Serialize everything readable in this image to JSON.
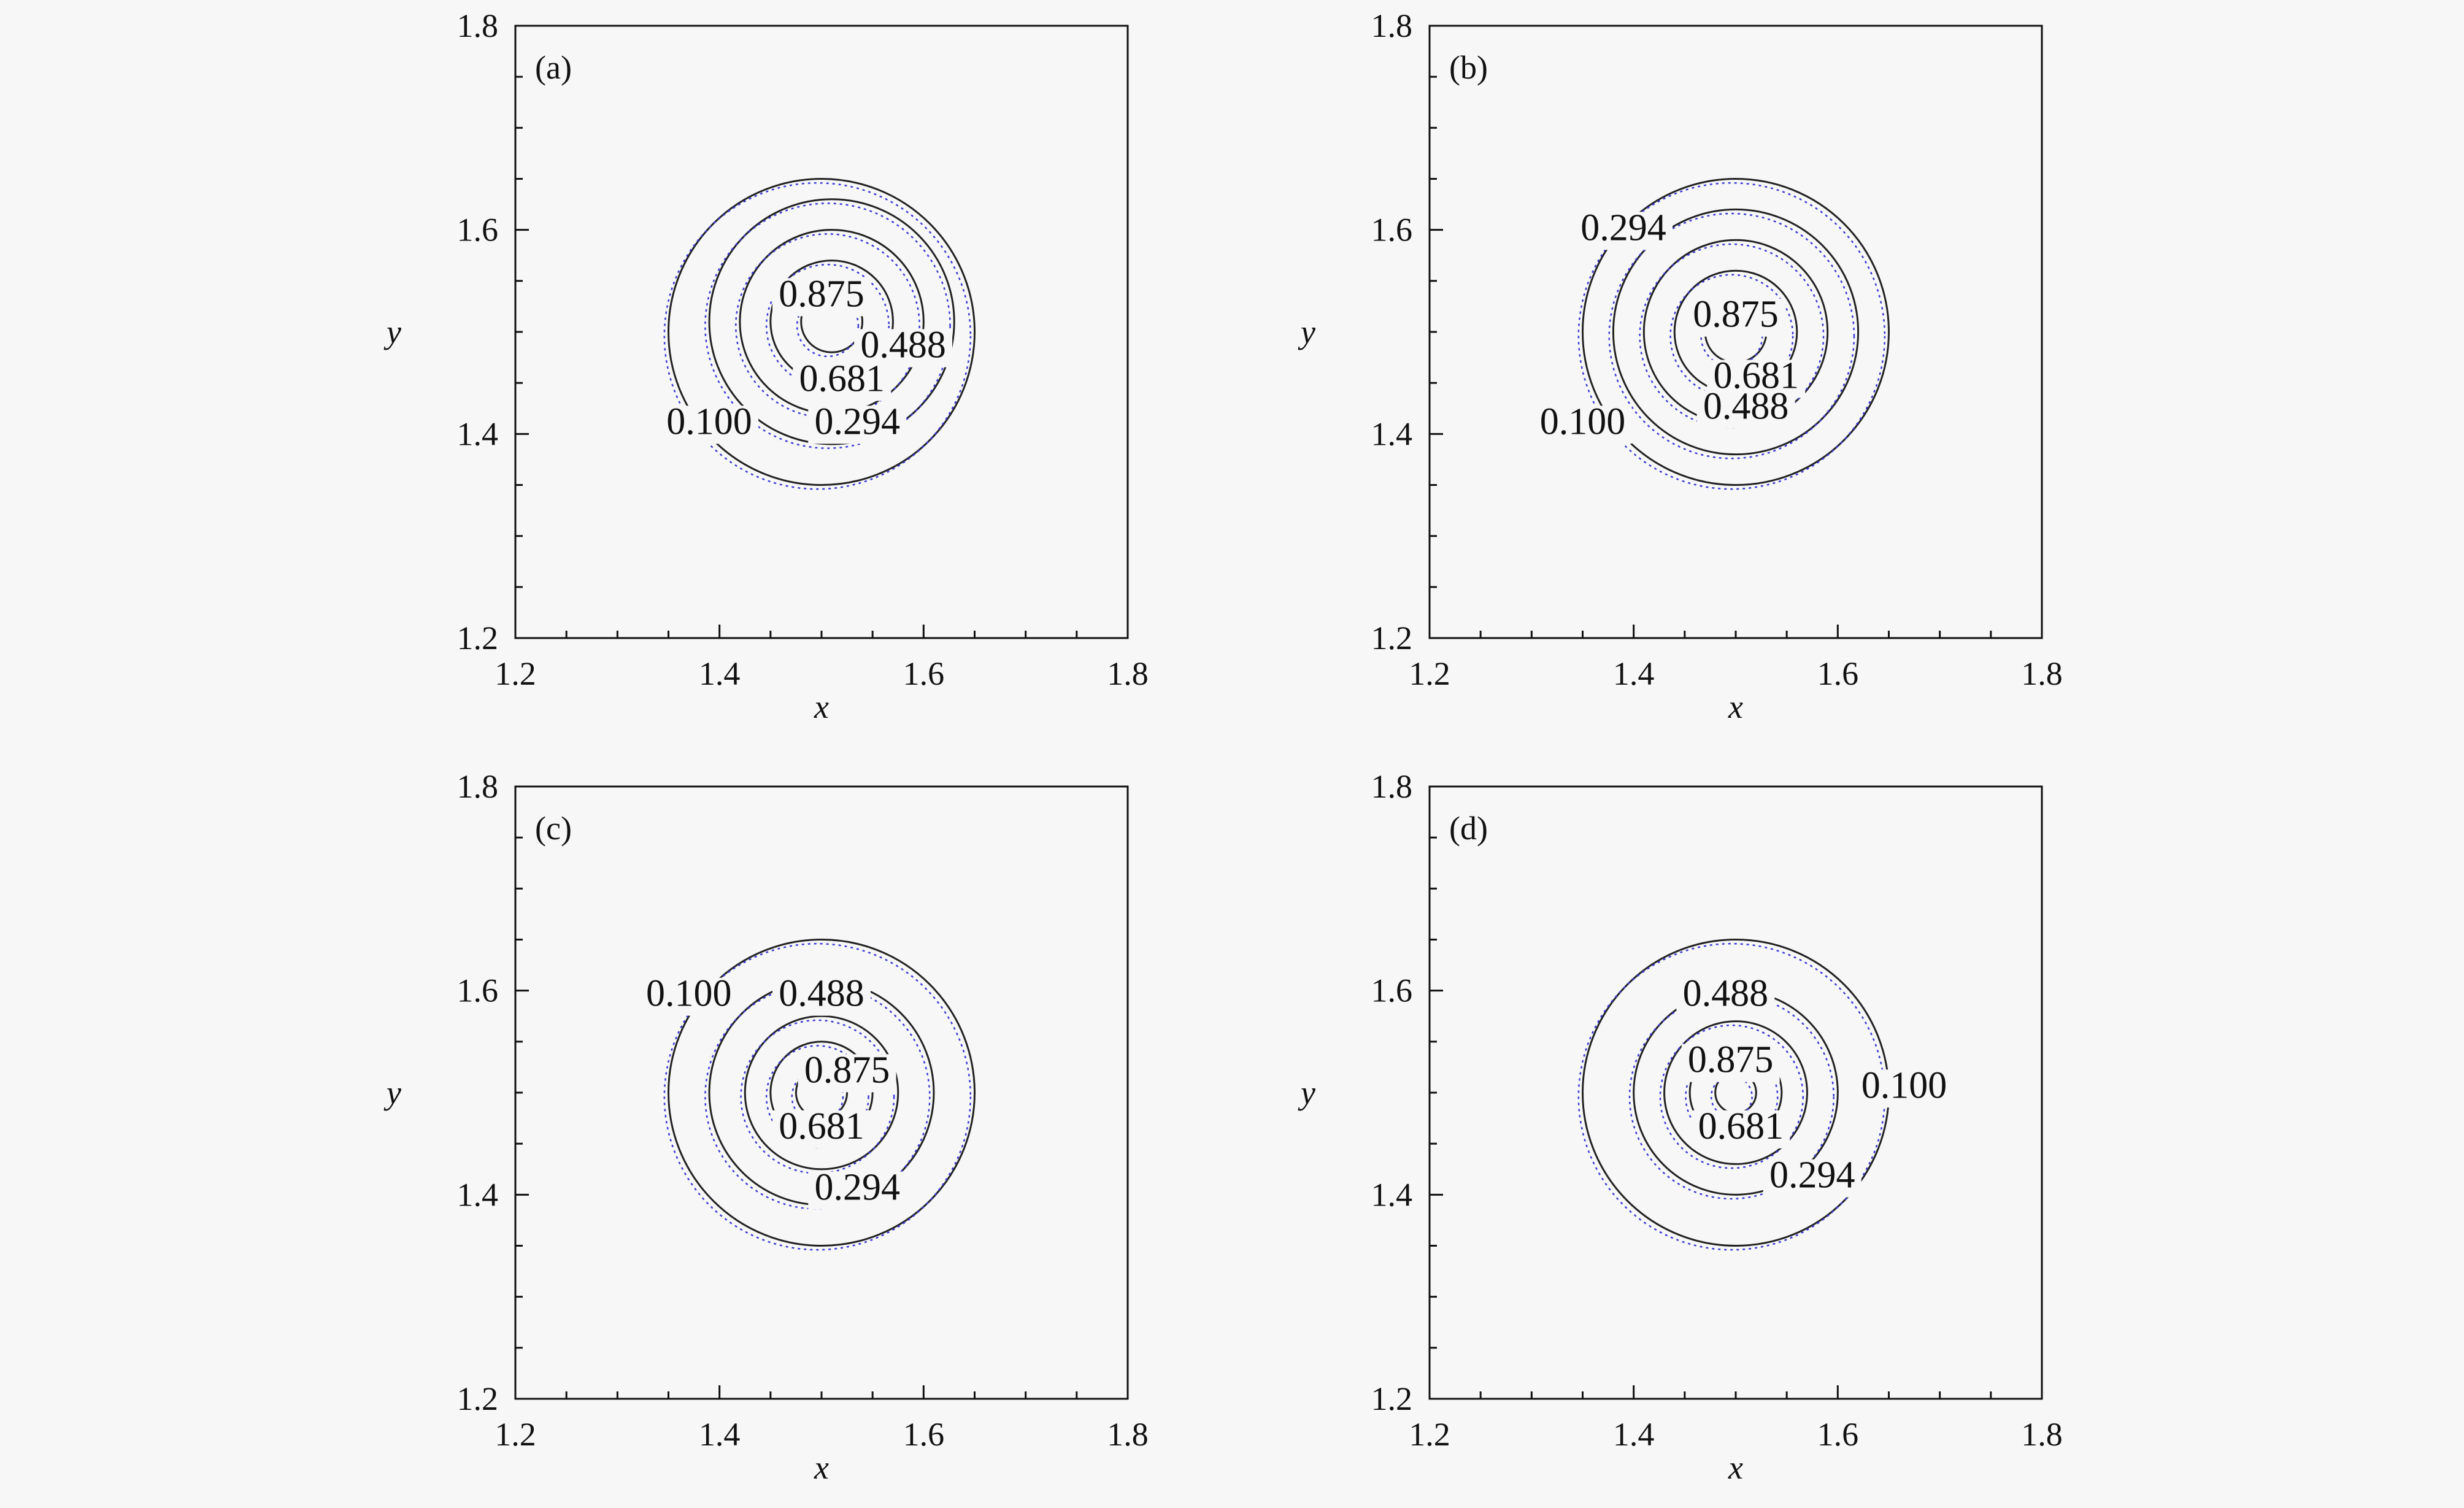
{
  "chart_data": [
    {
      "type": "contour",
      "panel_label": "(a)",
      "xlabel": "x",
      "ylabel": "y",
      "xlim": [
        1.2,
        1.8
      ],
      "ylim": [
        1.2,
        1.8
      ],
      "xticks": [
        "1.2",
        "1.4",
        "1.6",
        "1.8"
      ],
      "yticks": [
        "1.2",
        "1.4",
        "1.6",
        "1.8"
      ],
      "contours": [
        {
          "level": "0.100",
          "cx": 1.5,
          "cy": 1.5,
          "rx": 0.15,
          "ry": 0.15
        },
        {
          "level": "0.294",
          "cx": 1.51,
          "cy": 1.51,
          "rx": 0.12,
          "ry": 0.12
        },
        {
          "level": "0.488",
          "cx": 1.51,
          "cy": 1.51,
          "rx": 0.09,
          "ry": 0.09
        },
        {
          "level": "0.681",
          "cx": 1.51,
          "cy": 1.51,
          "rx": 0.06,
          "ry": 0.06
        },
        {
          "level": "0.875",
          "cx": 1.51,
          "cy": 1.51,
          "rx": 0.03,
          "ry": 0.03
        }
      ],
      "labels": [
        {
          "text": "0.875",
          "x": 1.5,
          "y": 1.525
        },
        {
          "text": "0.488",
          "x": 1.58,
          "y": 1.475
        },
        {
          "text": "0.681",
          "x": 1.52,
          "y": 1.442
        },
        {
          "text": "0.294",
          "x": 1.535,
          "y": 1.4
        },
        {
          "text": "0.100",
          "x": 1.39,
          "y": 1.4
        }
      ]
    },
    {
      "type": "contour",
      "panel_label": "(b)",
      "xlabel": "x",
      "ylabel": "y",
      "xlim": [
        1.2,
        1.8
      ],
      "ylim": [
        1.2,
        1.8
      ],
      "xticks": [
        "1.2",
        "1.4",
        "1.6",
        "1.8"
      ],
      "yticks": [
        "1.2",
        "1.4",
        "1.6",
        "1.8"
      ],
      "contours": [
        {
          "level": "0.100",
          "cx": 1.5,
          "cy": 1.5,
          "rx": 0.15,
          "ry": 0.15
        },
        {
          "level": "0.294",
          "cx": 1.5,
          "cy": 1.5,
          "rx": 0.12,
          "ry": 0.12
        },
        {
          "level": "0.488",
          "cx": 1.5,
          "cy": 1.5,
          "rx": 0.09,
          "ry": 0.09
        },
        {
          "level": "0.681",
          "cx": 1.5,
          "cy": 1.5,
          "rx": 0.06,
          "ry": 0.06
        },
        {
          "level": "0.875",
          "cx": 1.5,
          "cy": 1.5,
          "rx": 0.03,
          "ry": 0.03
        }
      ],
      "labels": [
        {
          "text": "0.294",
          "x": 1.39,
          "y": 1.59
        },
        {
          "text": "0.875",
          "x": 1.5,
          "y": 1.505
        },
        {
          "text": "0.681",
          "x": 1.52,
          "y": 1.445
        },
        {
          "text": "0.488",
          "x": 1.51,
          "y": 1.415
        },
        {
          "text": "0.100",
          "x": 1.35,
          "y": 1.4
        }
      ]
    },
    {
      "type": "contour",
      "panel_label": "(c)",
      "xlabel": "x",
      "ylabel": "y",
      "xlim": [
        1.2,
        1.8
      ],
      "ylim": [
        1.2,
        1.8
      ],
      "xticks": [
        "1.2",
        "1.4",
        "1.6",
        "1.8"
      ],
      "yticks": [
        "1.2",
        "1.4",
        "1.6",
        "1.8"
      ],
      "contours": [
        {
          "level": "0.100",
          "cx": 1.5,
          "cy": 1.5,
          "rx": 0.15,
          "ry": 0.15
        },
        {
          "level": "0.294",
          "cx": 1.5,
          "cy": 1.5,
          "rx": 0.11,
          "ry": 0.11
        },
        {
          "level": "0.488",
          "cx": 1.5,
          "cy": 1.5,
          "rx": 0.075,
          "ry": 0.075
        },
        {
          "level": "0.681",
          "cx": 1.5,
          "cy": 1.5,
          "rx": 0.05,
          "ry": 0.05
        },
        {
          "level": "0.875",
          "cx": 1.5,
          "cy": 1.5,
          "rx": 0.025,
          "ry": 0.025
        }
      ],
      "labels": [
        {
          "text": "0.100",
          "x": 1.37,
          "y": 1.585
        },
        {
          "text": "0.488",
          "x": 1.5,
          "y": 1.585
        },
        {
          "text": "0.875",
          "x": 1.525,
          "y": 1.51
        },
        {
          "text": "0.681",
          "x": 1.5,
          "y": 1.455
        },
        {
          "text": "0.294",
          "x": 1.535,
          "y": 1.395
        }
      ]
    },
    {
      "type": "contour",
      "panel_label": "(d)",
      "xlabel": "x",
      "ylabel": "y",
      "xlim": [
        1.2,
        1.8
      ],
      "ylim": [
        1.2,
        1.8
      ],
      "xticks": [
        "1.2",
        "1.4",
        "1.6",
        "1.8"
      ],
      "yticks": [
        "1.2",
        "1.4",
        "1.6",
        "1.8"
      ],
      "contours": [
        {
          "level": "0.100",
          "cx": 1.5,
          "cy": 1.5,
          "rx": 0.15,
          "ry": 0.15
        },
        {
          "level": "0.294",
          "cx": 1.5,
          "cy": 1.5,
          "rx": 0.1,
          "ry": 0.1
        },
        {
          "level": "0.488",
          "cx": 1.5,
          "cy": 1.5,
          "rx": 0.07,
          "ry": 0.07
        },
        {
          "level": "0.681",
          "cx": 1.5,
          "cy": 1.5,
          "rx": 0.045,
          "ry": 0.045
        },
        {
          "level": "0.875",
          "cx": 1.5,
          "cy": 1.5,
          "rx": 0.02,
          "ry": 0.02
        }
      ],
      "labels": [
        {
          "text": "0.488",
          "x": 1.49,
          "y": 1.585
        },
        {
          "text": "0.875",
          "x": 1.495,
          "y": 1.52
        },
        {
          "text": "0.100",
          "x": 1.665,
          "y": 1.495
        },
        {
          "text": "0.681",
          "x": 1.505,
          "y": 1.455
        },
        {
          "text": "0.294",
          "x": 1.575,
          "y": 1.407
        }
      ]
    }
  ],
  "colors": {
    "background": "#f7f7f7",
    "axis": "#111111",
    "contour_solid": "#222222",
    "contour_dotted": "#3a3ad8"
  }
}
